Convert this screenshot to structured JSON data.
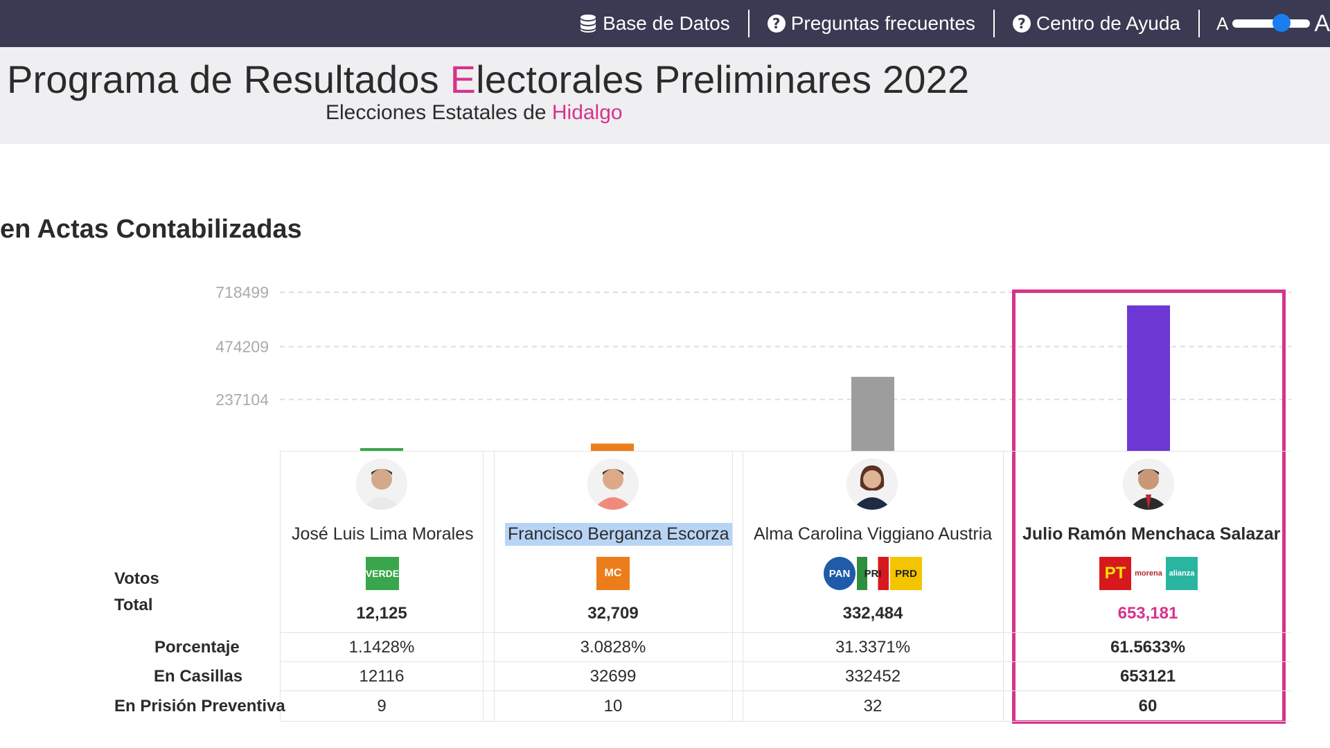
{
  "nav": {
    "items": [
      {
        "label": "Base de Datos",
        "icon": "database-icon"
      },
      {
        "label": "Preguntas frecuentes",
        "icon": "question-circle-icon"
      },
      {
        "label": "Centro de Ayuda",
        "icon": "question-circle-icon"
      }
    ],
    "font_small_label": "A",
    "font_large_label": "A"
  },
  "header": {
    "title_part1": "Programa de Resultados ",
    "title_highlight": "E",
    "title_part2": "lectorales Preliminares 2022",
    "subtitle_part1": "Elecciones Estatales de ",
    "subtitle_highlight": "Hidalgo"
  },
  "section": {
    "title": "en Actas Contabilizadas"
  },
  "chart_data": {
    "type": "bar",
    "yticks": [
      237104,
      474209,
      718499
    ],
    "ylim": [
      0,
      718499
    ],
    "categories": [
      "José Luis Lima Morales",
      "Francisco Berganza Escorza",
      "Alma Carolina Viggiano Austria",
      "Julio Ramón Menchaca Salazar"
    ],
    "values": [
      12125,
      32709,
      332484,
      653181
    ],
    "colors": [
      "#3aa64b",
      "#ec7d1b",
      "#9d9d9d",
      "#6d37d4"
    ],
    "grid": true
  },
  "table": {
    "labels": {
      "votos": "Votos",
      "total": "Total",
      "porcentaje": "Porcentaje",
      "casillas": "En Casillas",
      "prision": "En Prisión Preventiva"
    },
    "candidates": [
      {
        "name": "José Luis Lima Morales",
        "total": "12,125",
        "porcentaje": "1.1428%",
        "casillas": "12116",
        "prision": "9",
        "logos": [
          {
            "text": "VERDE",
            "color": "#3aa64b",
            "icon": "verde-logo-icon"
          }
        ]
      },
      {
        "name": "Francisco Berganza Escorza",
        "total": "32,709",
        "porcentaje": "3.0828%",
        "casillas": "32699",
        "prision": "10",
        "logos": [
          {
            "text": "MC",
            "color": "#ec7d1b",
            "icon": "movimiento-ciudadano-logo-icon"
          }
        ]
      },
      {
        "name": "Alma Carolina Viggiano Austria",
        "total": "332,484",
        "porcentaje": "31.3371%",
        "casillas": "332452",
        "prision": "32",
        "logos": [
          {
            "text": "PAN",
            "color": "#1f5ba8",
            "icon": "pan-logo-icon"
          },
          {
            "text": "PRI",
            "color": "#2f8f3e",
            "icon": "pri-logo-icon"
          },
          {
            "text": "PRD",
            "color": "#f5c400",
            "icon": "prd-logo-icon"
          }
        ]
      },
      {
        "name": "Julio Ramón Menchaca Salazar",
        "total": "653,181",
        "porcentaje": "61.5633%",
        "casillas": "653121",
        "prision": "60",
        "logos": [
          {
            "text": "PT",
            "color": "#d7191e",
            "icon": "pt-logo-icon"
          },
          {
            "text": "morena",
            "color": "#ffffff",
            "icon": "morena-logo-icon"
          },
          {
            "text": "alianza",
            "color": "#2ab5a3",
            "icon": "nueva-alianza-logo-icon"
          }
        ]
      }
    ]
  }
}
